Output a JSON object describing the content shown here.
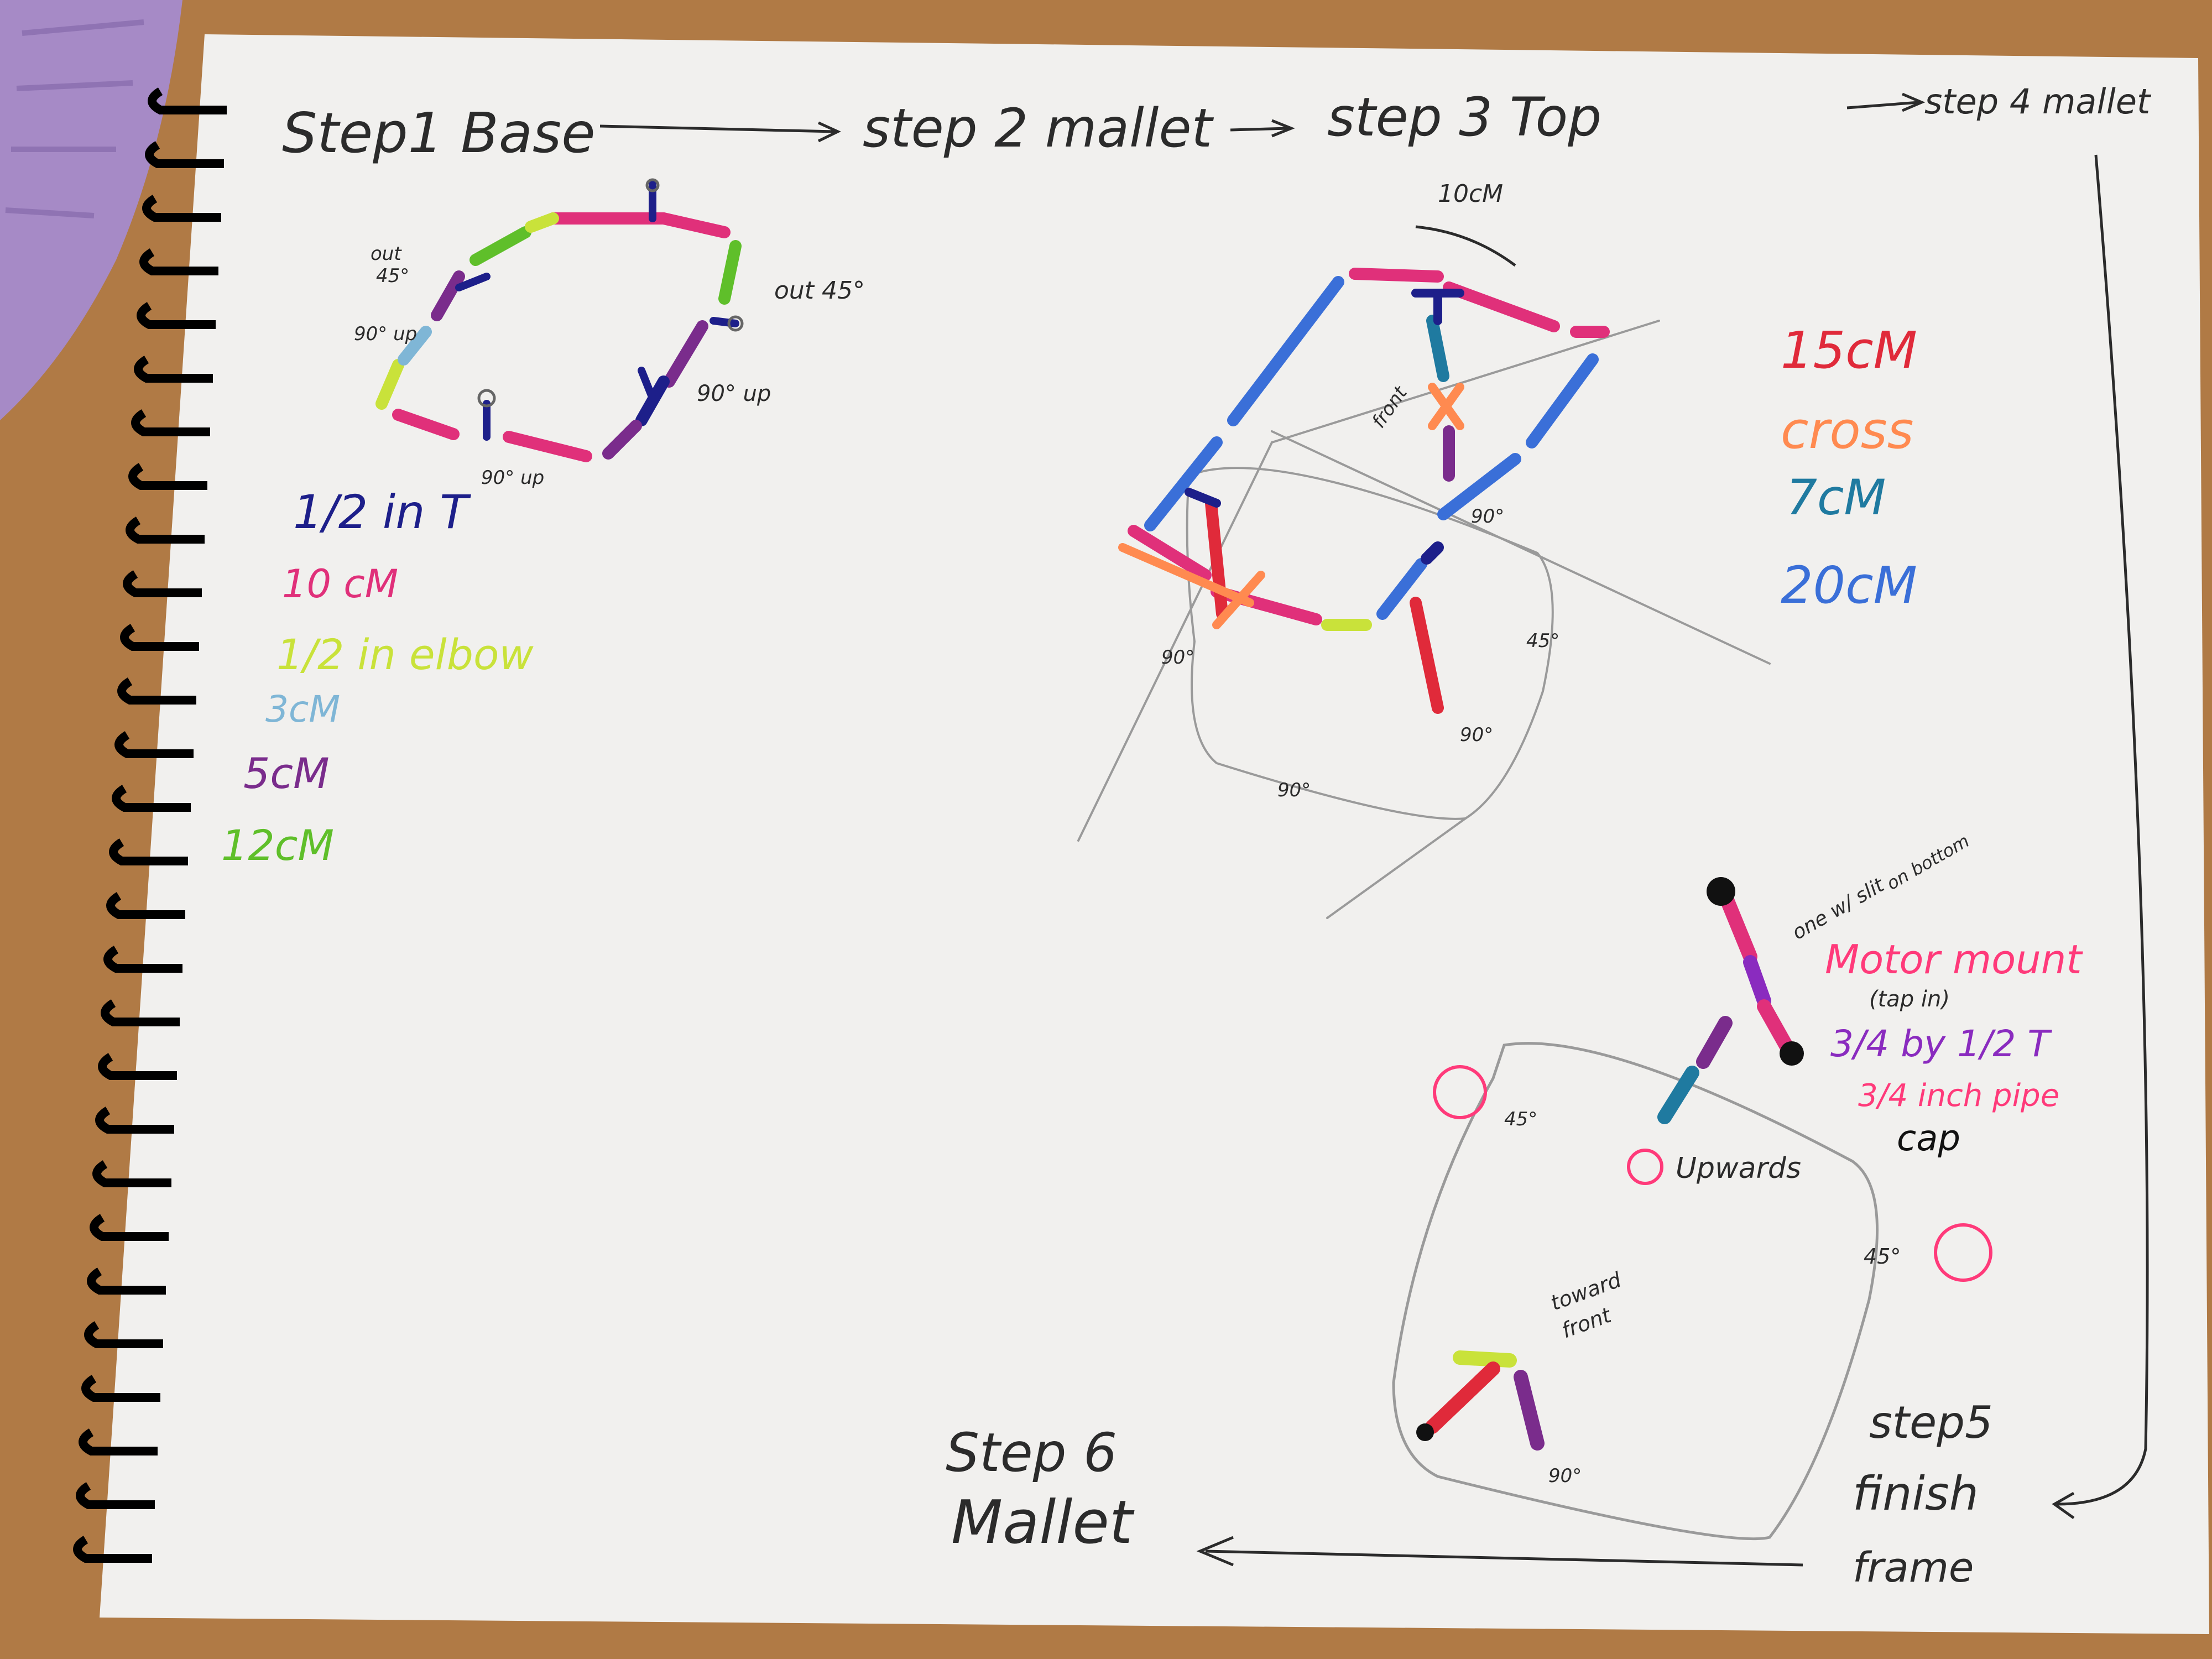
{
  "colors": {
    "desk": "#b07a45",
    "paper": "#f1f0ee",
    "pencil": "#2b2b2b",
    "grey_sketch": "#9a9a9a",
    "half_in_t": "#1d1f8a",
    "ten_cm": "#e0307a",
    "half_in_elbow": "#c9e23a",
    "three_cm": "#7fb6d6",
    "five_cm": "#7a2c8c",
    "twelve_cm": "#5fbf2a",
    "fifteen_cm": "#e02a3a",
    "cross": "#ff8a50",
    "seven_cm": "#1f7aa0",
    "twenty_cm": "#3a6fd8",
    "motor_pink": "#ff3a7a",
    "motor_purple": "#8a2bbf",
    "binder": "#000000",
    "bag": "#a68ac6"
  },
  "steps": {
    "step1": "Step1 Base",
    "step2": "step 2 mallet",
    "step3": "step 3 Top",
    "step4": "step 4 mallet",
    "step5_line1": "step5",
    "step5_line2": "finish",
    "step5_line3": "frame",
    "step6_line1": "Step 6",
    "step6_line2": "Mallet"
  },
  "legend_left": {
    "half_in_t": "1/2 in T",
    "ten_cm": "10 cM",
    "half_in_elbow": "1/2 in elbow",
    "three_cm": "3cM",
    "five_cm": "5cM",
    "twelve_cm": "12cM"
  },
  "legend_right": {
    "fifteen_cm": "15cM",
    "cross": "cross",
    "seven_cm": "7cM",
    "twenty_cm": "20cM"
  },
  "base_annotations": {
    "out45_left_1": "out",
    "out45_left_2": "45°",
    "up90_left": "90° up",
    "out45_right": "out 45°",
    "up90_right": "90° up",
    "up90_bottom": "90° up"
  },
  "top_annotations": {
    "ten_cm": "10cM",
    "front": "front",
    "a90_mid": "90°",
    "a90_left": "90°",
    "a45": "45°",
    "a90_bottom": "90°",
    "a90_right": "90°"
  },
  "finish_annotations": {
    "slit_1": "one w/ slit",
    "slit_2": "on bottom",
    "motor_mount": "Motor mount",
    "tap_in": "(tap in)",
    "t_label": "3/4 by 1/2 T",
    "pipe_label": "3/4 inch pipe",
    "cap_label": "cap",
    "upwards": "Upwards",
    "a45_left": "45°",
    "a45_right": "45°",
    "toward_1": "toward",
    "toward_2": "front",
    "a90": "90°"
  }
}
